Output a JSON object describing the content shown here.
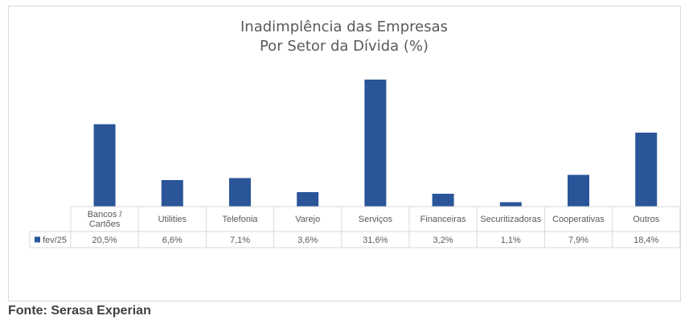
{
  "chart_data": {
    "type": "bar",
    "title": [
      "Inadimplência das Empresas",
      "Por Setor da Dívida (%)"
    ],
    "categories": [
      "Bancos / Cartões",
      "Utilities",
      "Telefonia",
      "Varejo",
      "Serviços",
      "Financeiras",
      "Securitizadoras",
      "Cooperativas",
      "Outros"
    ],
    "series": [
      {
        "name": "fev/25",
        "values": [
          20.5,
          6.6,
          7.1,
          3.6,
          31.6,
          3.2,
          1.1,
          7.9,
          18.4
        ],
        "labels": [
          "20,5%",
          "6,6%",
          "7,1%",
          "3,6%",
          "31,6%",
          "3,2%",
          "1,1%",
          "7,9%",
          "18,4%"
        ],
        "color": "#2a5599"
      }
    ],
    "ylim": [
      0,
      40
    ],
    "grid": false,
    "legend": "data-table"
  },
  "source": "Fonte: Serasa Experian"
}
